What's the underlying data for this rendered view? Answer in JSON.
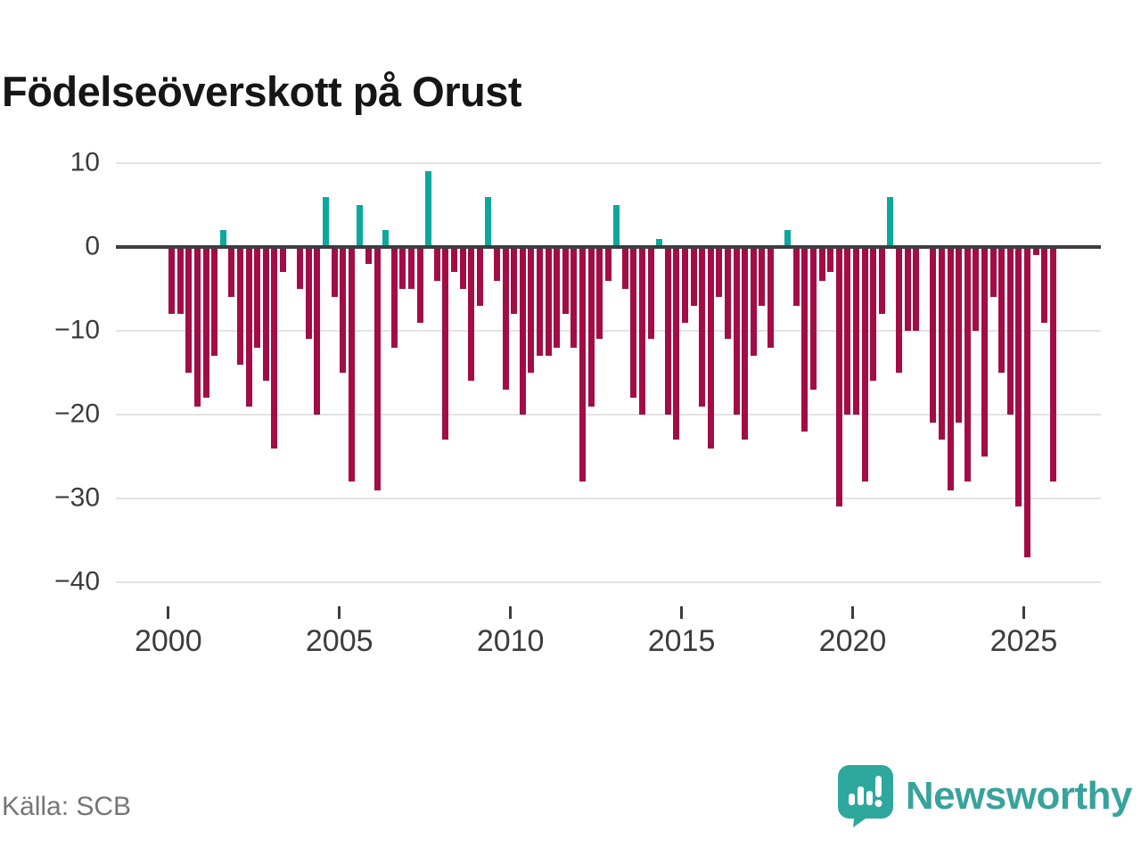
{
  "title": "Födelseöverskott på Orust",
  "source": "Källa: SCB",
  "branding": {
    "name": "Newsworthy",
    "icon": "newsworthy-speech-bubble-chart-icon"
  },
  "colors": {
    "negative_bar": "#a30d45",
    "positive_bar": "#0da89c",
    "zero_line": "#3d3d42",
    "gridline": "#e3e3e3",
    "axis_text": "#3c3c3c",
    "source_text": "#767676",
    "brand_teal": "#38a39b"
  },
  "chart_data": {
    "type": "bar",
    "title": "Födelseöverskott på Orust",
    "frequency": "quarterly",
    "start": "2000Q1",
    "end": "2025Q4",
    "xlabel": "",
    "ylabel": "",
    "ylim": [
      -40,
      10
    ],
    "grid": "horizontal",
    "y_ticks": [
      10,
      0,
      -10,
      -20,
      -30,
      -40
    ],
    "y_tick_labels": [
      "10",
      "0",
      "−10",
      "−20",
      "−30",
      "−40"
    ],
    "x_tick_years": [
      2000,
      2005,
      2010,
      2015,
      2020,
      2025
    ],
    "x_tick_labels": [
      "2000",
      "2005",
      "2010",
      "2015",
      "2020",
      "2025"
    ],
    "values": [
      -8,
      -8,
      -15,
      -19,
      -18,
      -13,
      2,
      -6,
      -14,
      -19,
      -12,
      -16,
      -24,
      -3,
      0,
      -5,
      -11,
      -20,
      6,
      -6,
      -15,
      -28,
      5,
      -2,
      -29,
      2,
      -12,
      -5,
      -5,
      -9,
      9,
      -4,
      -23,
      -3,
      -5,
      -16,
      -7,
      6,
      -4,
      -17,
      -8,
      -20,
      -15,
      -13,
      -13,
      -12,
      -8,
      -12,
      -28,
      -19,
      -11,
      -4,
      5,
      -5,
      -18,
      -20,
      -11,
      1,
      -20,
      -23,
      -9,
      -7,
      -19,
      -24,
      -6,
      -11,
      -20,
      -23,
      -13,
      -7,
      -12,
      0,
      2,
      -7,
      -22,
      -17,
      -4,
      -3,
      -31,
      -20,
      -20,
      -28,
      -16,
      -8,
      6,
      -15,
      -10,
      -10,
      0,
      -21,
      -23,
      -29,
      -21,
      -28,
      -10,
      -25,
      -6,
      -15,
      -20,
      -31,
      -37,
      -1,
      -9,
      -28
    ]
  }
}
